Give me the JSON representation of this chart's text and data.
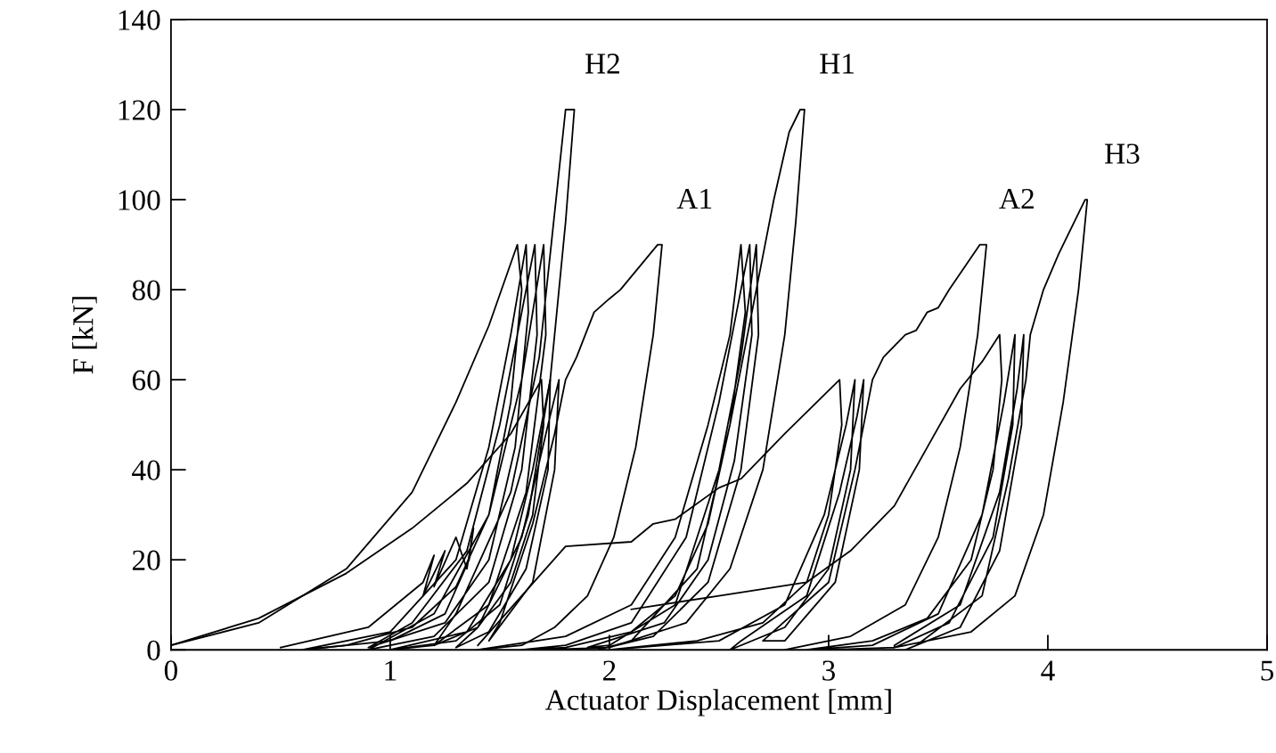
{
  "chart_data": {
    "type": "line",
    "xlabel": "Actuator Displacement [mm]",
    "ylabel": "F [kN]",
    "xlim": [
      0,
      5
    ],
    "xticks": [
      0,
      1,
      2,
      3,
      4,
      5
    ],
    "ylim": [
      0,
      140
    ],
    "yticks": [
      0,
      20,
      40,
      60,
      80,
      100,
      120,
      140
    ],
    "grid": false,
    "marker": "none",
    "line_style": "solid",
    "series": [
      {
        "name": "H2",
        "color": "#000000",
        "x": [
          0,
          0.4,
          0.8,
          1.1,
          1.3,
          1.45,
          1.58,
          1.6,
          1.55,
          1.45,
          1.3,
          1.1,
          0.8,
          0.6,
          1.0,
          1.3,
          1.45,
          1.55,
          1.62,
          1.63,
          1.57,
          1.45,
          1.25,
          0.9,
          1.1,
          1.35,
          1.5,
          1.6,
          1.66,
          1.67,
          1.6,
          1.45,
          1.2,
          0.9,
          1.2,
          1.45,
          1.6,
          1.7,
          1.71,
          1.62,
          1.45,
          1.2,
          1.3,
          1.55,
          1.68,
          1.8,
          1.84,
          1.8,
          1.73,
          1.63,
          1.5,
          1.3,
          1.0
        ],
        "values": [
          1,
          6,
          18,
          35,
          55,
          72,
          90,
          80,
          55,
          30,
          14,
          5,
          1,
          0,
          4,
          20,
          45,
          70,
          90,
          75,
          45,
          20,
          6,
          0.5,
          6,
          22,
          50,
          75,
          90,
          70,
          40,
          15,
          3,
          0,
          8,
          30,
          60,
          90,
          70,
          35,
          10,
          1,
          8,
          35,
          65,
          120,
          120,
          95,
          60,
          30,
          10,
          2,
          0
        ]
      },
      {
        "color": "#000000",
        "x": [
          0.5,
          0.9,
          1.15,
          1.2,
          1.15,
          1.25,
          1.2,
          1.3,
          1.35,
          1.38,
          1.36,
          1.25,
          1.0,
          0.6
        ],
        "values": [
          0.5,
          5,
          15,
          21,
          12,
          22,
          14,
          25,
          18,
          27,
          20,
          8,
          2,
          0
        ]
      },
      {
        "name": "A1",
        "color": "#000000",
        "x": [
          0,
          0.4,
          0.8,
          1.1,
          1.35,
          1.55,
          1.69,
          1.7,
          1.65,
          1.55,
          1.4,
          1.2,
          1.0,
          1.35,
          1.55,
          1.65,
          1.73,
          1.72,
          1.62,
          1.45,
          1.3,
          1.4,
          1.6,
          1.72,
          1.77,
          1.75,
          1.65,
          1.45,
          1.5,
          1.65,
          1.75,
          1.8,
          1.85,
          1.93,
          2.0,
          2.05,
          2.22,
          2.24,
          2.2,
          2.12,
          2.02,
          1.9,
          1.75,
          1.6,
          1.4
        ],
        "values": [
          1,
          7,
          17,
          27,
          37,
          48,
          60,
          50,
          30,
          15,
          5,
          1,
          0,
          4,
          20,
          40,
          60,
          40,
          18,
          4,
          0.5,
          5,
          25,
          50,
          60,
          40,
          15,
          2,
          6,
          28,
          48,
          60,
          65,
          75,
          78,
          80,
          90,
          90,
          70,
          45,
          25,
          12,
          5,
          1,
          0
        ]
      },
      {
        "name": "H1",
        "color": "#000000",
        "x": [
          1.4,
          1.8,
          2.1,
          2.3,
          2.45,
          2.55,
          2.6,
          2.62,
          2.55,
          2.45,
          2.3,
          2.1,
          1.8,
          1.6,
          1.8,
          2.1,
          2.35,
          2.5,
          2.64,
          2.65,
          2.57,
          2.45,
          2.25,
          1.9,
          2.0,
          2.3,
          2.5,
          2.6,
          2.67,
          2.68,
          2.6,
          2.45,
          2.2,
          1.95,
          2.1,
          2.4,
          2.55,
          2.65,
          2.71,
          2.75,
          2.82,
          2.87,
          2.89,
          2.85,
          2.8,
          2.7,
          2.55,
          2.35,
          2.0,
          1.7
        ],
        "values": [
          0,
          3,
          10,
          25,
          50,
          70,
          90,
          75,
          50,
          28,
          12,
          4,
          0.5,
          0,
          1,
          6,
          25,
          55,
          90,
          70,
          42,
          20,
          6,
          0.5,
          1,
          10,
          40,
          65,
          90,
          70,
          40,
          15,
          3,
          0,
          2,
          18,
          50,
          75,
          90,
          100,
          115,
          120,
          120,
          95,
          70,
          40,
          18,
          6,
          0.5,
          0
        ]
      },
      {
        "name": "A2",
        "color": "#000000",
        "x": [
          1.4,
          1.6,
          1.8,
          2.1,
          2.2,
          2.3,
          2.5,
          2.6,
          2.8,
          3.05,
          3.06,
          3.0,
          2.9,
          2.7,
          2.4,
          2.0,
          2.5,
          2.8,
          2.98,
          3.08,
          3.12,
          3.1,
          3.0,
          2.8,
          2.55,
          2.6,
          2.9,
          3.05,
          3.13,
          3.16,
          3.14,
          3.03,
          2.8,
          2.7,
          3.0,
          3.12,
          3.2,
          3.25,
          3.35,
          3.4,
          3.45,
          3.5,
          3.55,
          3.69,
          3.72,
          3.68,
          3.6,
          3.5,
          3.35,
          3.1,
          2.8
        ],
        "values": [
          1,
          12,
          23,
          24,
          28,
          29,
          36,
          38,
          48,
          60,
          50,
          30,
          15,
          6,
          2,
          0,
          2,
          10,
          30,
          50,
          60,
          40,
          18,
          5,
          0,
          2,
          12,
          35,
          52,
          60,
          40,
          15,
          2,
          2,
          15,
          40,
          60,
          65,
          70,
          71,
          75,
          76,
          80,
          90,
          90,
          70,
          45,
          25,
          10,
          3,
          0
        ]
      },
      {
        "name": "H3",
        "color": "#000000",
        "x": [
          2.1,
          2.5,
          2.9,
          3.1,
          3.3,
          3.45,
          3.6,
          3.7,
          3.78,
          3.79,
          3.75,
          3.65,
          3.45,
          3.2,
          2.9,
          3.2,
          3.5,
          3.7,
          3.8,
          3.85,
          3.84,
          3.75,
          3.55,
          3.3,
          3.3,
          3.6,
          3.78,
          3.86,
          3.89,
          3.88,
          3.78,
          3.6,
          3.35,
          3.4,
          3.7,
          3.82,
          3.9,
          3.92,
          3.98,
          4.05,
          4.17,
          4.18,
          4.14,
          4.07,
          3.98,
          3.85,
          3.65,
          3.3,
          3.0
        ],
        "values": [
          9,
          12,
          15,
          22,
          32,
          45,
          58,
          64,
          70,
          60,
          40,
          20,
          7,
          2,
          0,
          1,
          8,
          30,
          55,
          70,
          50,
          25,
          6,
          0.5,
          1,
          10,
          35,
          58,
          70,
          50,
          22,
          5,
          0,
          1,
          12,
          38,
          60,
          70,
          80,
          88,
          100,
          100,
          80,
          55,
          30,
          12,
          4,
          0.5,
          0
        ]
      }
    ]
  }
}
